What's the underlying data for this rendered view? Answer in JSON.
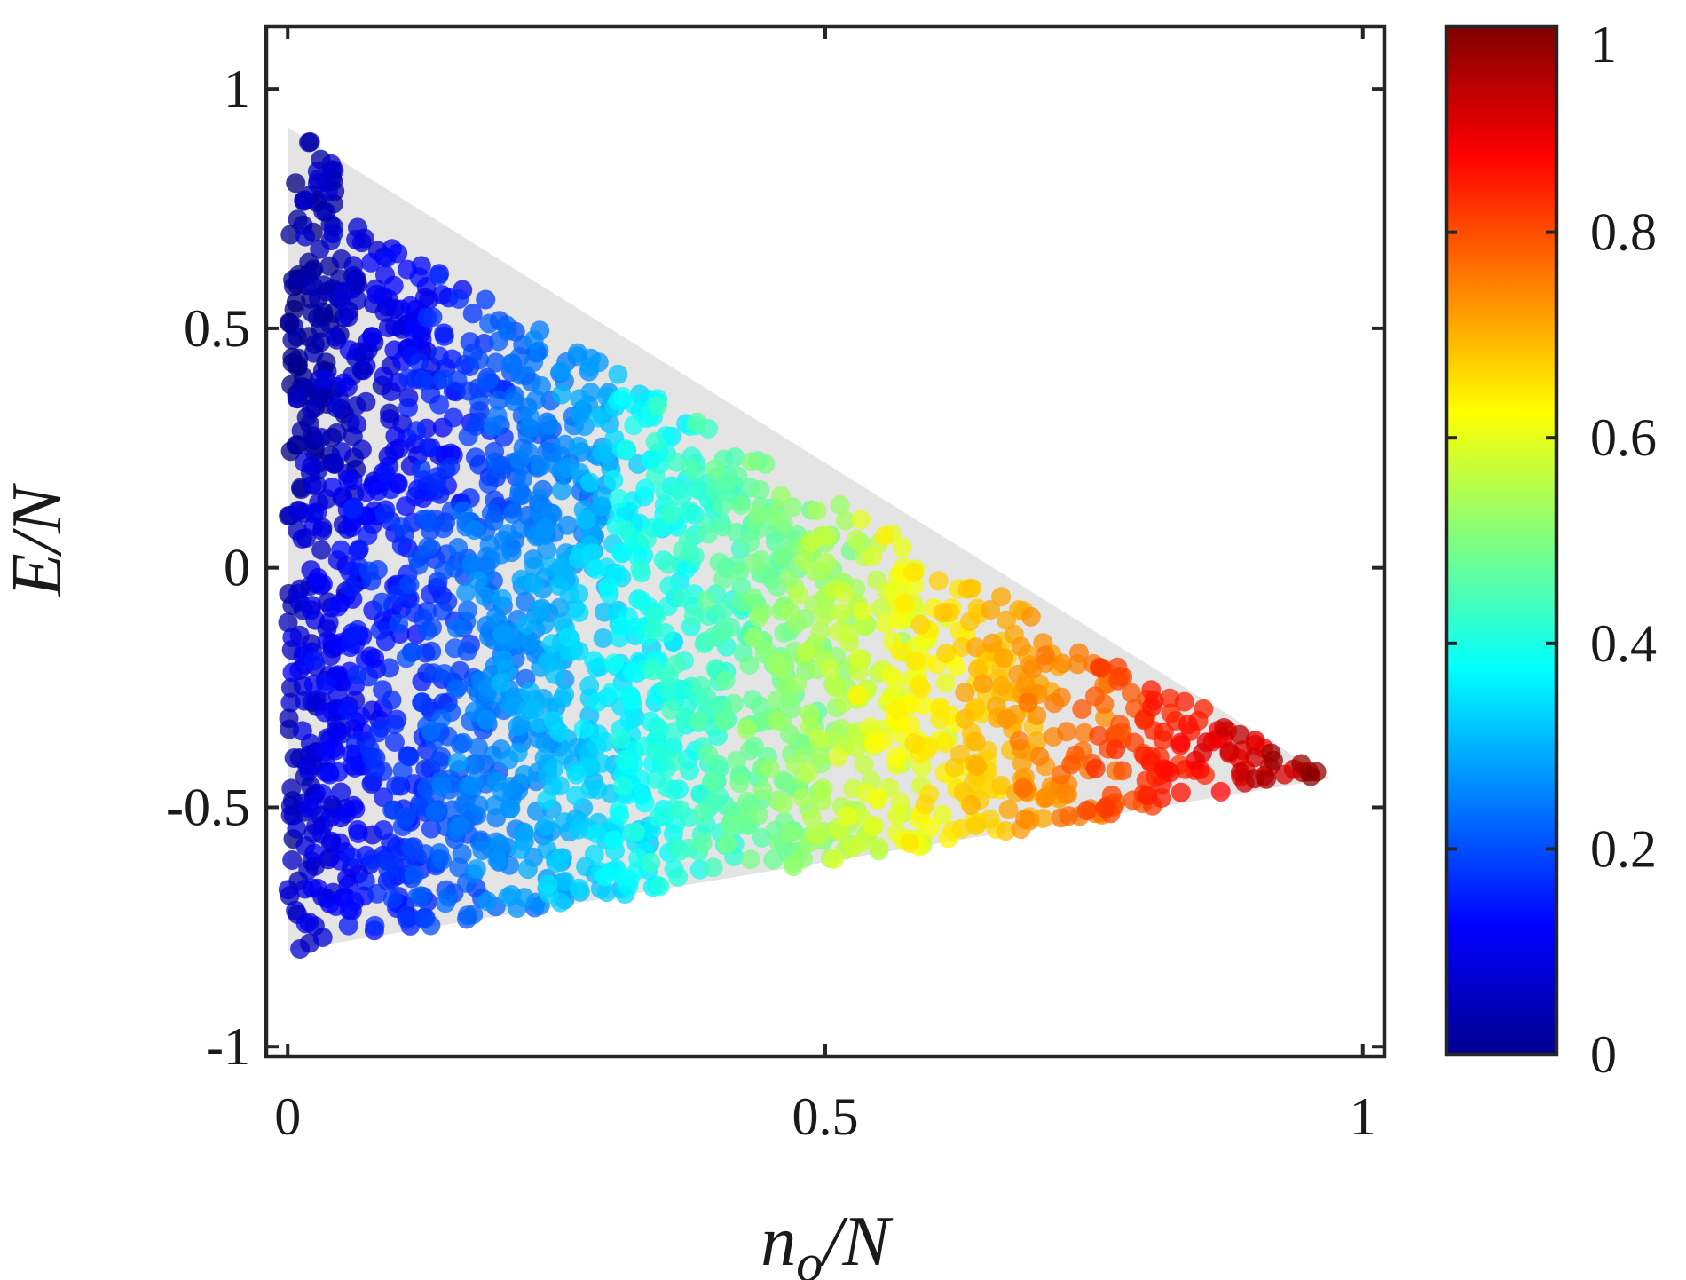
{
  "chart_data": {
    "type": "scatter",
    "title": "",
    "xlabel": "n_o/N",
    "xlabel_main": "n",
    "xlabel_sub": "o",
    "xlabel_rest": "/N",
    "ylabel": "E/N",
    "xlim": [
      -0.02,
      1.02
    ],
    "ylim": [
      -1.02,
      1.13
    ],
    "xticks": [
      0,
      0.5,
      1
    ],
    "xtick_labels": [
      "0",
      "0.5",
      "1"
    ],
    "yticks": [
      -1,
      -0.5,
      0,
      0.5,
      1
    ],
    "ytick_labels": [
      "-1",
      "-0.5",
      "0",
      "0.5",
      "1"
    ],
    "grid": false,
    "colorbar": {
      "colormap": "jet",
      "range": [
        0,
        1
      ],
      "ticks": [
        0,
        0.2,
        0.4,
        0.6,
        0.8,
        1
      ],
      "tick_labels": [
        "0",
        "0.2",
        "0.4",
        "0.6",
        "0.8",
        "1"
      ]
    },
    "background_region": {
      "color": "#e4e4e4",
      "vertices": [
        [
          0,
          0.92
        ],
        [
          0.97,
          -0.44
        ],
        [
          0,
          -0.8
        ]
      ]
    },
    "series": [
      {
        "color_by": "colorbar value",
        "description_points": [
          {
            "x": 0.0,
            "y": 0.9,
            "c": 0.02
          },
          {
            "x": 0.02,
            "y": 0.6,
            "c": 0.05
          },
          {
            "x": 0.05,
            "y": 0.3,
            "c": 0.12
          },
          {
            "x": 0.1,
            "y": 0.1,
            "c": 0.2
          },
          {
            "x": 0.2,
            "y": 0.0,
            "c": 0.3
          },
          {
            "x": 0.3,
            "y": -0.2,
            "c": 0.4
          },
          {
            "x": 0.4,
            "y": -0.3,
            "c": 0.5
          },
          {
            "x": 0.5,
            "y": -0.3,
            "c": 0.6
          },
          {
            "x": 0.6,
            "y": -0.35,
            "c": 0.7
          },
          {
            "x": 0.7,
            "y": -0.4,
            "c": 0.8
          },
          {
            "x": 0.8,
            "y": -0.42,
            "c": 0.9
          },
          {
            "x": 0.9,
            "y": -0.44,
            "c": 0.97
          },
          {
            "x": 0.97,
            "y": -0.44,
            "c": 1.0
          },
          {
            "x": 0.02,
            "y": -0.75,
            "c": 0.05
          },
          {
            "x": 0.1,
            "y": -0.75,
            "c": 0.12
          },
          {
            "x": 0.3,
            "y": -0.68,
            "c": 0.3
          }
        ]
      }
    ]
  }
}
